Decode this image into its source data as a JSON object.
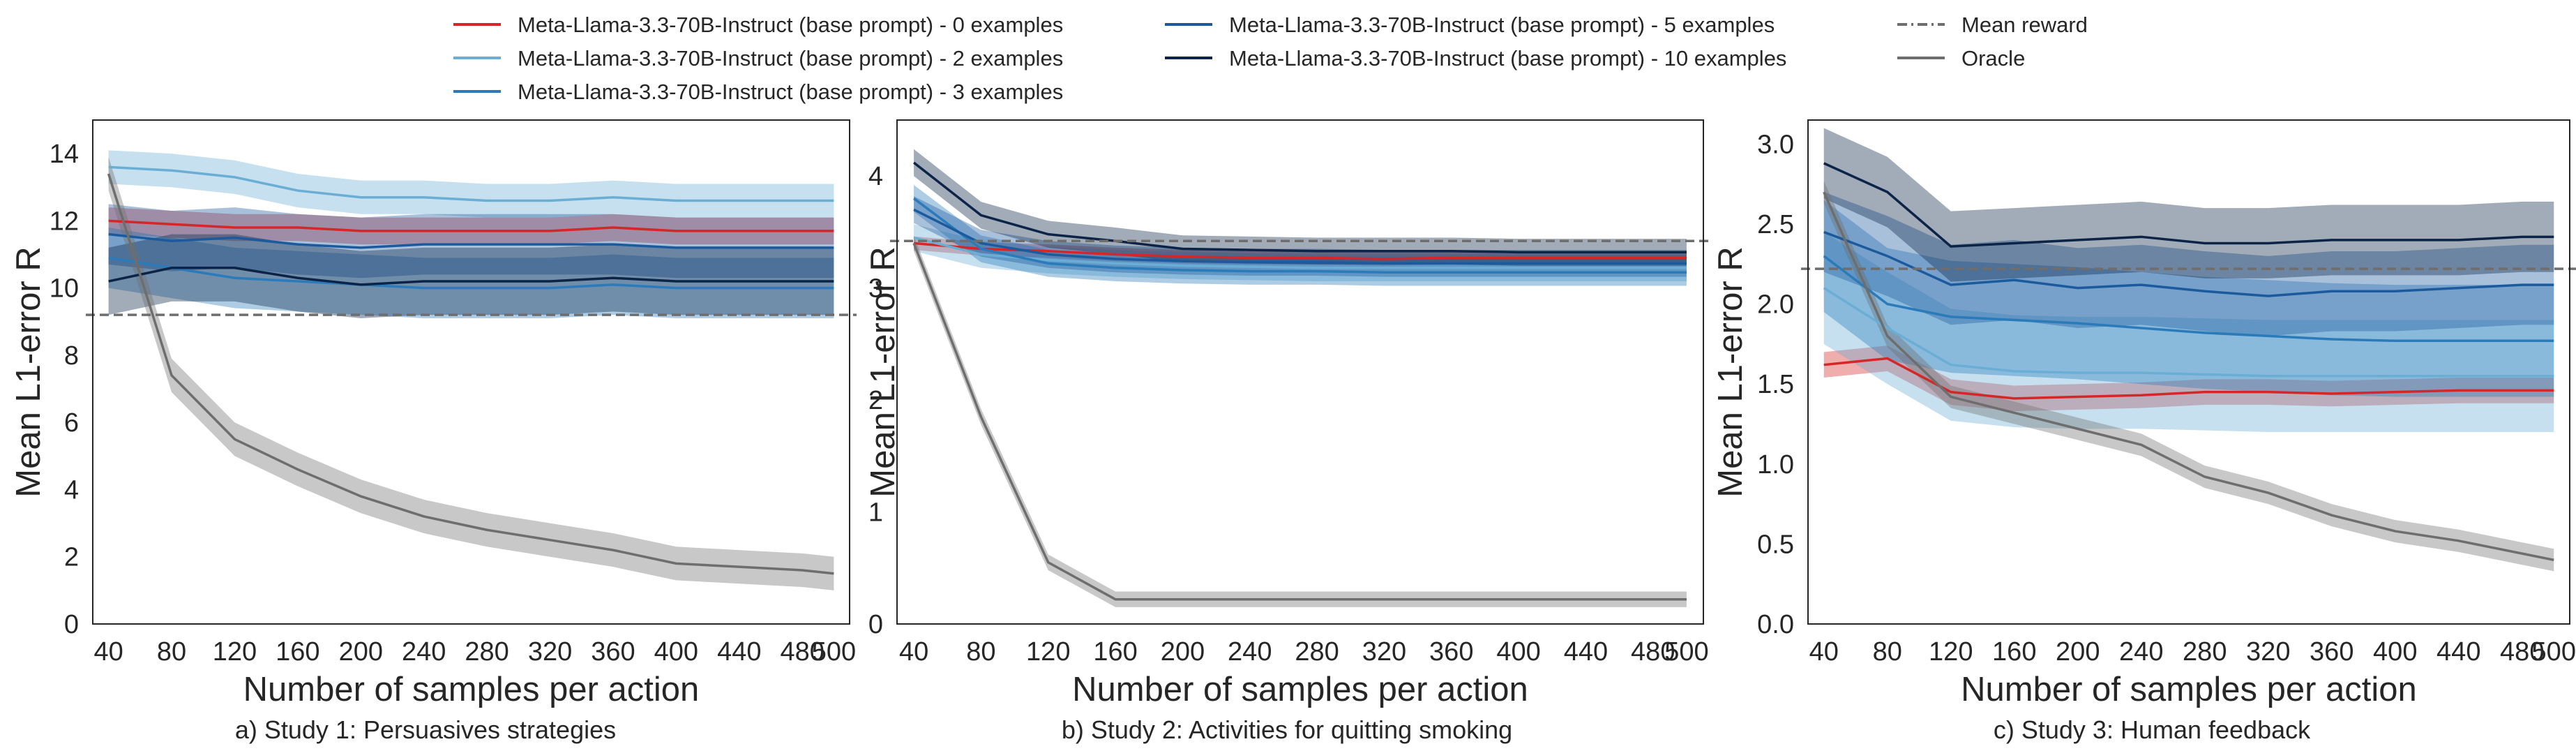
{
  "legend": {
    "placement": "top-center",
    "entries": [
      {
        "label": "Meta-Llama-3.3-70B-Instruct (base prompt) - 0 examples",
        "color": "#d62728",
        "style": "solid"
      },
      {
        "label": "Meta-Llama-3.3-70B-Instruct (base prompt) - 2 examples",
        "color": "#6aaed6",
        "style": "solid"
      },
      {
        "label": "Meta-Llama-3.3-70B-Instruct (base prompt) - 3 examples",
        "color": "#2b7bba",
        "style": "solid"
      },
      {
        "label": "Meta-Llama-3.3-70B-Instruct (base prompt) - 5 examples",
        "color": "#1c5a9e",
        "style": "solid"
      },
      {
        "label": "Meta-Llama-3.3-70B-Instruct (base prompt) - 10 examples",
        "color": "#0b2447",
        "style": "solid"
      },
      {
        "label": "Mean reward",
        "color": "#6e6e6e",
        "style": "dashdot"
      },
      {
        "label": "Oracle",
        "color": "#6e6e6e",
        "style": "solid"
      }
    ]
  },
  "chart_data": [
    {
      "type": "line",
      "caption": "a) Study 1: Persuasives strategies",
      "xlabel": "Number of samples per action",
      "ylabel": "Mean L1-error R",
      "x": [
        40,
        80,
        120,
        160,
        200,
        240,
        280,
        320,
        360,
        400,
        440,
        480,
        500
      ],
      "xlim": [
        30,
        510
      ],
      "ylim": [
        0,
        15
      ],
      "yticks": [
        0,
        2,
        4,
        6,
        8,
        10,
        12,
        14
      ],
      "ytick_labels": [
        "0",
        "2",
        "4",
        "6",
        "8",
        "10",
        "12",
        "14"
      ],
      "mean_reward": 9.2,
      "series": [
        {
          "name": "0 examples",
          "color": "#d62728",
          "values": [
            12.0,
            11.9,
            11.8,
            11.8,
            11.7,
            11.7,
            11.7,
            11.7,
            11.8,
            11.7,
            11.7,
            11.7,
            11.7
          ],
          "band": 0.4
        },
        {
          "name": "2 examples",
          "color": "#6aaed6",
          "values": [
            13.6,
            13.5,
            13.3,
            12.9,
            12.7,
            12.7,
            12.6,
            12.6,
            12.7,
            12.6,
            12.6,
            12.6,
            12.6
          ],
          "band": 0.5
        },
        {
          "name": "3 examples",
          "color": "#2b7bba",
          "values": [
            10.9,
            10.6,
            10.3,
            10.2,
            10.1,
            10.0,
            10.0,
            10.0,
            10.1,
            10.0,
            10.0,
            10.0,
            10.0
          ],
          "band": 0.9
        },
        {
          "name": "5 examples",
          "color": "#1c5a9e",
          "values": [
            11.6,
            11.4,
            11.5,
            11.3,
            11.2,
            11.3,
            11.3,
            11.3,
            11.3,
            11.2,
            11.2,
            11.2,
            11.2
          ],
          "band": 0.9
        },
        {
          "name": "10 examples",
          "color": "#0b2447",
          "values": [
            10.2,
            10.6,
            10.6,
            10.3,
            10.1,
            10.2,
            10.2,
            10.2,
            10.3,
            10.2,
            10.2,
            10.2,
            10.2
          ],
          "band": 1.0
        },
        {
          "name": "Oracle",
          "color": "#6e6e6e",
          "values": [
            13.4,
            7.4,
            5.5,
            4.6,
            3.8,
            3.2,
            2.8,
            2.5,
            2.2,
            1.8,
            1.7,
            1.6,
            1.5
          ],
          "band": 0.5
        }
      ]
    },
    {
      "type": "line",
      "caption": "b) Study 2: Activities for quitting smoking",
      "xlabel": "Number of samples per action",
      "ylabel": "Mean L1-error R",
      "x": [
        40,
        80,
        120,
        160,
        200,
        240,
        280,
        320,
        360,
        400,
        440,
        480,
        500
      ],
      "xlim": [
        30,
        510
      ],
      "ylim": [
        0,
        4.5
      ],
      "yticks": [
        0,
        1,
        2,
        3,
        4
      ],
      "ytick_labels": [
        "0",
        "1",
        "2",
        "3",
        "4"
      ],
      "mean_reward": 3.42,
      "series": [
        {
          "name": "0 examples",
          "color": "#d62728",
          "values": [
            3.4,
            3.35,
            3.33,
            3.3,
            3.28,
            3.27,
            3.27,
            3.26,
            3.27,
            3.27,
            3.27,
            3.27,
            3.27
          ],
          "band": 0.06
        },
        {
          "name": "2 examples",
          "color": "#6aaed6",
          "values": [
            3.45,
            3.3,
            3.25,
            3.22,
            3.2,
            3.19,
            3.18,
            3.18,
            3.18,
            3.18,
            3.18,
            3.18,
            3.18
          ],
          "band": 0.12
        },
        {
          "name": "3 examples",
          "color": "#2b7bba",
          "values": [
            3.8,
            3.35,
            3.22,
            3.18,
            3.16,
            3.15,
            3.15,
            3.14,
            3.14,
            3.14,
            3.14,
            3.14,
            3.14
          ],
          "band": 0.12
        },
        {
          "name": "5 examples",
          "color": "#1c5a9e",
          "values": [
            3.7,
            3.4,
            3.3,
            3.26,
            3.24,
            3.23,
            3.23,
            3.22,
            3.22,
            3.22,
            3.22,
            3.22,
            3.22
          ],
          "band": 0.12
        },
        {
          "name": "10 examples",
          "color": "#0b2447",
          "values": [
            4.12,
            3.65,
            3.48,
            3.42,
            3.35,
            3.34,
            3.33,
            3.33,
            3.33,
            3.32,
            3.32,
            3.32,
            3.32
          ],
          "band": 0.12
        },
        {
          "name": "Oracle",
          "color": "#6e6e6e",
          "values": [
            3.4,
            1.85,
            0.55,
            0.22,
            0.22,
            0.22,
            0.22,
            0.22,
            0.22,
            0.22,
            0.22,
            0.22,
            0.22
          ],
          "band": 0.07
        }
      ]
    },
    {
      "type": "line",
      "caption": "c) Study 3: Human feedback",
      "xlabel": "Number of samples per action",
      "ylabel": "Mean L1-error R",
      "x": [
        40,
        80,
        120,
        160,
        200,
        240,
        280,
        320,
        360,
        400,
        440,
        480,
        500
      ],
      "xlim": [
        30,
        510
      ],
      "ylim": [
        0,
        3.15
      ],
      "yticks": [
        0.0,
        0.5,
        1.0,
        1.5,
        2.0,
        2.5,
        3.0
      ],
      "ytick_labels": [
        "0.0",
        "0.5",
        "1.0",
        "1.5",
        "2.0",
        "2.5",
        "3.0"
      ],
      "mean_reward": 2.22,
      "series": [
        {
          "name": "0 examples",
          "color": "#d62728",
          "values": [
            1.62,
            1.66,
            1.45,
            1.41,
            1.42,
            1.43,
            1.45,
            1.45,
            1.44,
            1.45,
            1.46,
            1.46,
            1.46
          ],
          "band": 0.08
        },
        {
          "name": "2 examples",
          "color": "#6aaed6",
          "values": [
            2.1,
            1.85,
            1.62,
            1.58,
            1.57,
            1.57,
            1.56,
            1.55,
            1.55,
            1.55,
            1.55,
            1.55,
            1.55
          ],
          "band": 0.35
        },
        {
          "name": "3 examples",
          "color": "#2b7bba",
          "values": [
            2.3,
            2.0,
            1.92,
            1.9,
            1.88,
            1.85,
            1.82,
            1.8,
            1.78,
            1.77,
            1.77,
            1.77,
            1.77
          ],
          "band": 0.35
        },
        {
          "name": "5 examples",
          "color": "#1c5a9e",
          "values": [
            2.45,
            2.3,
            2.12,
            2.15,
            2.1,
            2.12,
            2.08,
            2.05,
            2.08,
            2.08,
            2.1,
            2.12,
            2.12
          ],
          "band": 0.25
        },
        {
          "name": "10 examples",
          "color": "#0b2447",
          "values": [
            2.88,
            2.7,
            2.36,
            2.38,
            2.4,
            2.42,
            2.38,
            2.38,
            2.4,
            2.4,
            2.4,
            2.42,
            2.42
          ],
          "band": 0.22
        },
        {
          "name": "Oracle",
          "color": "#6e6e6e",
          "values": [
            2.7,
            1.8,
            1.42,
            1.32,
            1.22,
            1.12,
            0.92,
            0.82,
            0.68,
            0.58,
            0.52,
            0.44,
            0.4
          ],
          "band": 0.07
        }
      ]
    }
  ]
}
